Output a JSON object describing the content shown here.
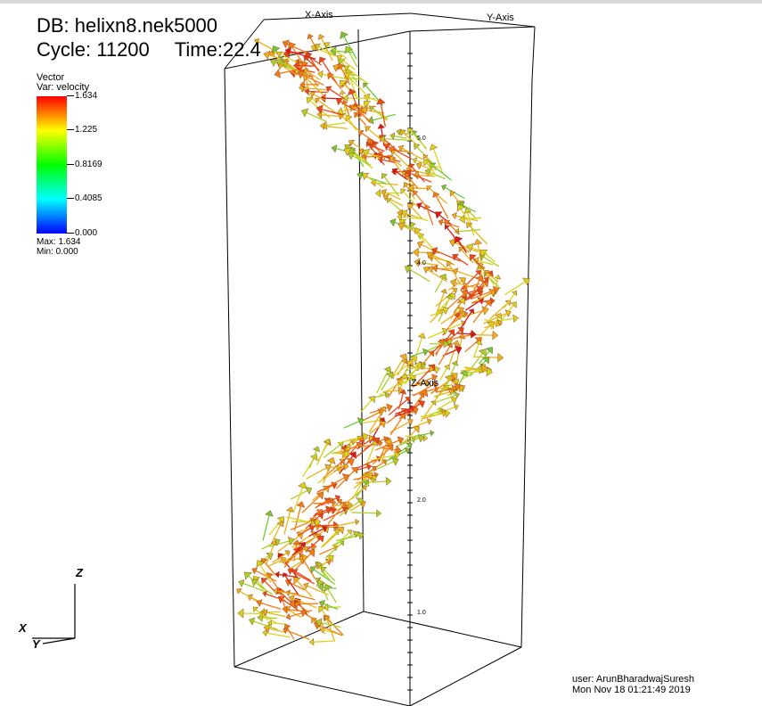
{
  "header": {
    "db_label": "DB: helixn8.nek5000",
    "cycle_label": "Cycle: 11200",
    "time_label": "Time:22.4"
  },
  "legend": {
    "plot_type": "Vector",
    "variable": "Var: velocity",
    "ticks": [
      "1.634",
      "1.225",
      "0.8169",
      "0.4085",
      "0.000"
    ],
    "max_label": "Max:  1.634",
    "min_label": "Min:  0.000",
    "colors": [
      "#ff0000",
      "#ffff00",
      "#00ff00",
      "#00ffff",
      "#0000ff"
    ]
  },
  "axes": {
    "x_axis_label": "X-Axis",
    "y_axis_label": "Y-Axis",
    "z_axis_label": "Z-Axis",
    "z_tick_labels": [
      "5.0",
      "4.0",
      "2.0",
      "1.0"
    ]
  },
  "triad": {
    "x": "X",
    "y": "Y",
    "z": "Z"
  },
  "footer": {
    "user": "user: ArunBharadwajSuresh",
    "date": "Mon Nov 18 01:21:49 2019"
  }
}
